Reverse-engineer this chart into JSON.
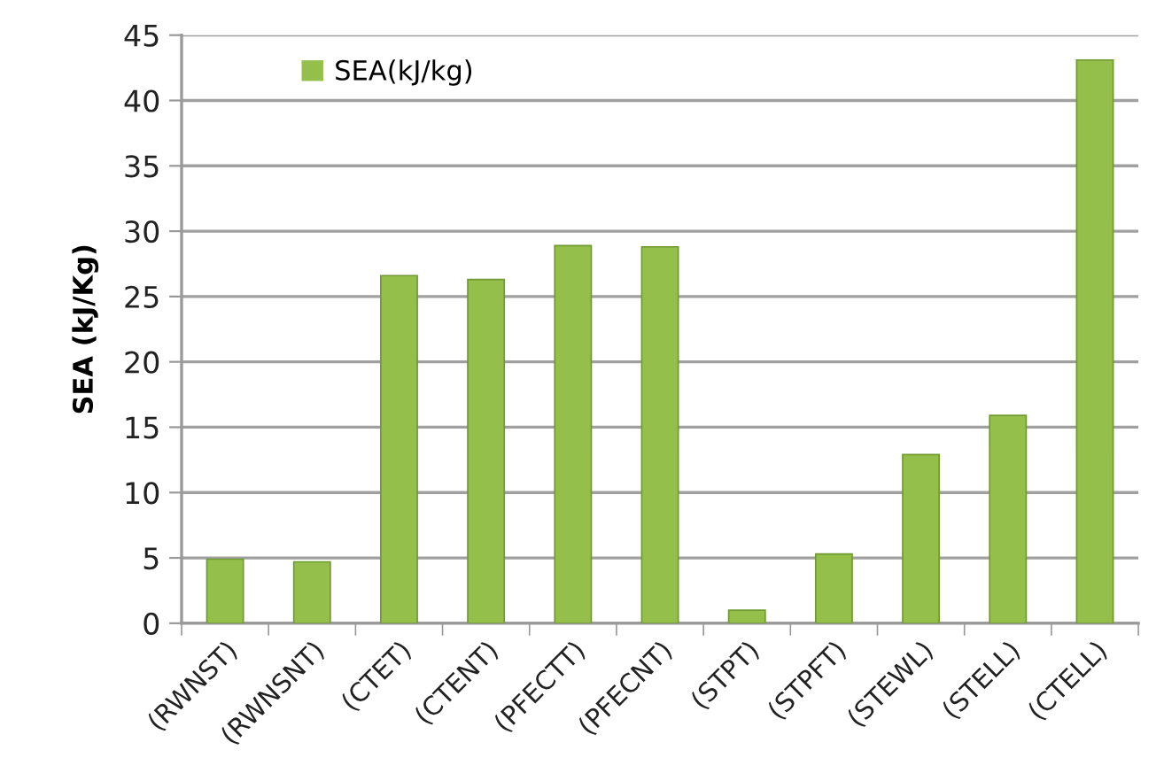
{
  "chart_data": {
    "type": "bar",
    "categories": [
      "(RWNST)",
      "(RWNSNT)",
      "(CTET)",
      "(CTENT)",
      "(PFECTT)",
      "(PFECNT)",
      "(STPT)",
      "(STPFT)",
      "(STEWL)",
      "(STELL)",
      "(CTELL)"
    ],
    "series": [
      {
        "name": "SEA(kJ/kg)",
        "color": "#94bf4a",
        "values": [
          4.9,
          4.7,
          26.6,
          26.3,
          28.9,
          28.8,
          1.0,
          5.3,
          12.9,
          15.9,
          43.1
        ]
      }
    ],
    "ylabel": "SEA (kJ/Kg)",
    "ylim": [
      0,
      45
    ],
    "yticks": [
      0,
      5,
      10,
      15,
      20,
      25,
      30,
      35,
      40,
      45
    ],
    "grid": "y",
    "legend": "top left"
  }
}
